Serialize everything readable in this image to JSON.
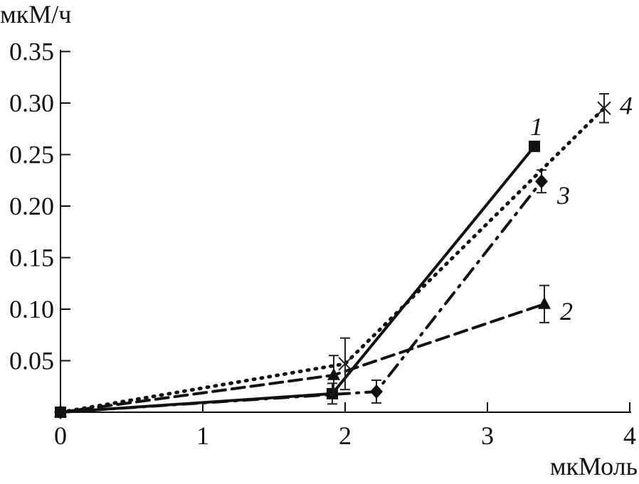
{
  "chart_data": {
    "type": "line",
    "title": "",
    "xlabel": "мкМоль",
    "ylabel": "мкМ/ч",
    "xlim": [
      0,
      4
    ],
    "ylim": [
      0,
      0.35
    ],
    "x_ticks": [
      0,
      1,
      2,
      3,
      4
    ],
    "x_tick_labels": [
      "0",
      "1",
      "2",
      "3",
      "4"
    ],
    "y_ticks": [
      0.05,
      0.1,
      0.15,
      0.2,
      0.25,
      0.3,
      0.35
    ],
    "y_tick_labels": [
      "0.05",
      "0.10",
      "0.15",
      "0.20",
      "0.25",
      "0.30",
      "0.35"
    ],
    "grid": false,
    "series": [
      {
        "name": "1",
        "marker": "square",
        "line": "solid",
        "x": [
          0.0,
          1.91,
          3.33
        ],
        "y": [
          0.0,
          0.018,
          0.258
        ],
        "err": [
          0,
          0.01,
          0.003
        ]
      },
      {
        "name": "2",
        "marker": "triangle",
        "line": "dashed",
        "x": [
          0.0,
          1.92,
          3.4
        ],
        "y": [
          0.0,
          0.036,
          0.105
        ],
        "err": [
          0,
          0.019,
          0.018
        ]
      },
      {
        "name": "3",
        "marker": "diamond",
        "line": "dashdot",
        "x": [
          0.0,
          2.22,
          3.38
        ],
        "y": [
          0.0,
          0.02,
          0.224
        ],
        "err": [
          0,
          0.011,
          0.011
        ]
      },
      {
        "name": "4",
        "marker": "x",
        "line": "dotted",
        "x": [
          0.0,
          2.0,
          3.82
        ],
        "y": [
          0.0,
          0.047,
          0.295
        ],
        "err": [
          0,
          0.025,
          0.014
        ]
      }
    ]
  }
}
